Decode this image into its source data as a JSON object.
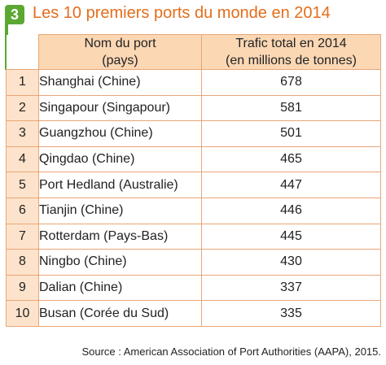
{
  "figure": {
    "number": "3",
    "title": "Les 10 premiers ports du monde en 2014"
  },
  "table": {
    "col_port_line1": "Nom du port",
    "col_port_line2": "(pays)",
    "col_traffic_line1": "Trafic total en 2014",
    "col_traffic_line2": "(en millions de tonnes)",
    "rows": [
      {
        "rank": "1",
        "port": "Shanghai (Chine)",
        "traffic": "678"
      },
      {
        "rank": "2",
        "port": "Singapour (Singapour)",
        "traffic": "581"
      },
      {
        "rank": "3",
        "port": "Guangzhou (Chine)",
        "traffic": "501"
      },
      {
        "rank": "4",
        "port": "Qingdao (Chine)",
        "traffic": "465"
      },
      {
        "rank": "5",
        "port": "Port Hedland (Australie)",
        "traffic": "447"
      },
      {
        "rank": "6",
        "port": "Tianjin (Chine)",
        "traffic": "446"
      },
      {
        "rank": "7",
        "port": "Rotterdam (Pays-Bas)",
        "traffic": "445"
      },
      {
        "rank": "8",
        "port": "Ningbo (Chine)",
        "traffic": "430"
      },
      {
        "rank": "9",
        "port": "Dalian (Chine)",
        "traffic": "337"
      },
      {
        "rank": "10",
        "port": "Busan (Corée du Sud)",
        "traffic": "335"
      }
    ]
  },
  "source": "Source : American Association of Port Authorities (AAPA), 2015.",
  "colors": {
    "title": "#e36d1c",
    "badge": "#5aa832",
    "header_bg": "#fbd7b4",
    "rank_bg": "#fde3cb",
    "border": "#e8a676"
  }
}
